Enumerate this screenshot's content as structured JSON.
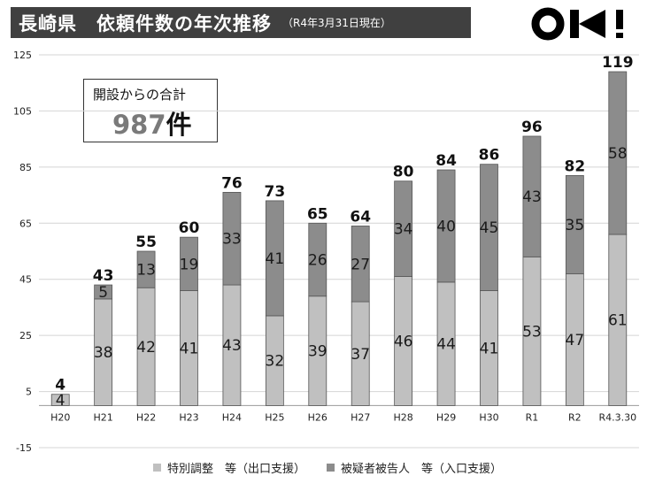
{
  "title": {
    "main": "長崎県　依頼件数の年次推移",
    "subtitle": "（R4年3月31日現在）"
  },
  "logo": {
    "name": "ok-logo"
  },
  "total_box": {
    "label": "開設からの合計",
    "number": "987",
    "unit": "件"
  },
  "colors": {
    "bottom": "#c0c0c0",
    "top": "#8c8c8c",
    "border": "#555555",
    "grid": "#d4d4d4",
    "title_bg": "#404040"
  },
  "legend": [
    {
      "label": "特別調整　等（出口支援）",
      "color": "#c0c0c0"
    },
    {
      "label": "被疑者被告人　等（入口支援）",
      "color": "#8c8c8c"
    }
  ],
  "chart_data": {
    "type": "bar",
    "stacked": true,
    "categories": [
      "H20",
      "H21",
      "H22",
      "H23",
      "H24",
      "H25",
      "H26",
      "H27",
      "H28",
      "H29",
      "H30",
      "R1",
      "R2",
      "R4.3.30"
    ],
    "series": [
      {
        "name": "特別調整　等（出口支援）",
        "values": [
          4,
          38,
          42,
          41,
          43,
          32,
          39,
          37,
          46,
          44,
          41,
          53,
          47,
          61
        ]
      },
      {
        "name": "被疑者被告人　等（入口支援）",
        "values": [
          null,
          5,
          13,
          19,
          33,
          41,
          26,
          27,
          34,
          40,
          45,
          43,
          35,
          58
        ]
      }
    ],
    "totals": [
      4,
      43,
      55,
      60,
      76,
      73,
      65,
      64,
      80,
      84,
      86,
      96,
      82,
      119
    ],
    "yticks": [
      125,
      105,
      85,
      65,
      45,
      25,
      5,
      -15
    ],
    "ylim": [
      -15,
      125
    ],
    "grid": true,
    "legend_position": "bottom"
  }
}
